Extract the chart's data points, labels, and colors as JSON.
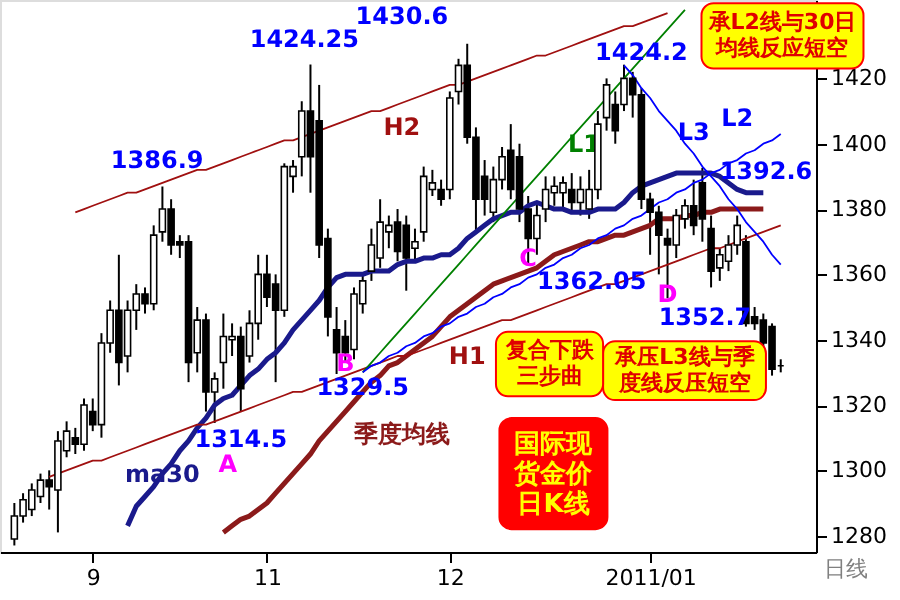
{
  "chart_data": {
    "type": "candlestick",
    "xlabel": "日线",
    "categories": [
      null,
      null,
      null,
      null,
      null,
      null,
      null,
      null,
      null,
      "9",
      null,
      null,
      null,
      null,
      null,
      null,
      null,
      null,
      null,
      null,
      null,
      null,
      null,
      null,
      null,
      null,
      null,
      null,
      null,
      "11",
      null,
      null,
      null,
      null,
      null,
      null,
      null,
      null,
      null,
      null,
      null,
      null,
      null,
      null,
      null,
      null,
      null,
      null,
      null,
      null,
      "12",
      null,
      null,
      null,
      null,
      null,
      null,
      null,
      null,
      null,
      null,
      null,
      null,
      null,
      null,
      null,
      null,
      null,
      null,
      null,
      null,
      null,
      null,
      "2011/01",
      null,
      null,
      null,
      null,
      null,
      null,
      null,
      null,
      null,
      null,
      null,
      null,
      null,
      null,
      null
    ],
    "ohlc": [
      [
        1279,
        1290,
        1277,
        1286
      ],
      [
        1286,
        1293,
        1284,
        1291
      ],
      [
        1288,
        1296,
        1286,
        1294
      ],
      [
        1292,
        1299,
        1290,
        1297
      ],
      [
        1297,
        1300,
        1288,
        1295
      ],
      [
        1294,
        1312,
        1281,
        1309
      ],
      [
        1306,
        1315,
        1304,
        1312
      ],
      [
        1310,
        1313,
        1305,
        1308
      ],
      [
        1308,
        1322,
        1306,
        1320
      ],
      [
        1318,
        1322,
        1312,
        1314
      ],
      [
        1314,
        1342,
        1310,
        1339
      ],
      [
        1339,
        1352,
        1336,
        1349
      ],
      [
        1349,
        1366,
        1326,
        1333
      ],
      [
        1335,
        1352,
        1330,
        1349
      ],
      [
        1349,
        1357,
        1343,
        1354
      ],
      [
        1354,
        1356,
        1348,
        1351
      ],
      [
        1351,
        1375,
        1349,
        1372
      ],
      [
        1373,
        1386.9,
        1370,
        1380
      ],
      [
        1380,
        1383,
        1366,
        1369
      ],
      [
        1370,
        1372,
        1365,
        1369
      ],
      [
        1370,
        1372,
        1327,
        1333
      ],
      [
        1336,
        1350,
        1330,
        1346
      ],
      [
        1346,
        1348,
        1318,
        1324
      ],
      [
        1324,
        1330,
        1314.5,
        1328
      ],
      [
        1333,
        1348,
        1325,
        1341
      ],
      [
        1340,
        1345,
        1335,
        1341
      ],
      [
        1341,
        1344,
        1318,
        1325
      ],
      [
        1335,
        1349,
        1333,
        1345
      ],
      [
        1345,
        1366,
        1340,
        1360
      ],
      [
        1360,
        1366,
        1350,
        1353
      ],
      [
        1357,
        1360,
        1327,
        1349
      ],
      [
        1349,
        1394,
        1347,
        1393
      ],
      [
        1390,
        1395,
        1385,
        1393
      ],
      [
        1396,
        1413,
        1390,
        1410
      ],
      [
        1410,
        1424.25,
        1385,
        1396
      ],
      [
        1407,
        1418,
        1365,
        1369
      ],
      [
        1371,
        1374,
        1341,
        1347
      ],
      [
        1343,
        1350,
        1329.5,
        1336
      ],
      [
        1341,
        1346,
        1333,
        1336
      ],
      [
        1337,
        1356,
        1334,
        1354
      ],
      [
        1351,
        1360,
        1348,
        1358
      ],
      [
        1361,
        1374,
        1358,
        1369
      ],
      [
        1365,
        1383,
        1362,
        1376
      ],
      [
        1373,
        1378,
        1368,
        1375
      ],
      [
        1376,
        1380,
        1364,
        1367
      ],
      [
        1375,
        1378,
        1355,
        1365
      ],
      [
        1368,
        1374,
        1364,
        1370
      ],
      [
        1373,
        1393,
        1370,
        1390
      ],
      [
        1386,
        1392,
        1384,
        1388
      ],
      [
        1386,
        1389,
        1381,
        1383
      ],
      [
        1386,
        1416,
        1383,
        1414
      ],
      [
        1416,
        1426,
        1412,
        1424
      ],
      [
        1424,
        1430.6,
        1400,
        1402
      ],
      [
        1402,
        1405,
        1373,
        1383
      ],
      [
        1390,
        1395,
        1378,
        1383
      ],
      [
        1379,
        1393,
        1376,
        1389
      ],
      [
        1389,
        1399,
        1386,
        1396
      ],
      [
        1398,
        1406,
        1383,
        1386
      ],
      [
        1396,
        1400,
        1376,
        1380
      ],
      [
        1380,
        1384,
        1363,
        1371
      ],
      [
        1371,
        1382,
        1366,
        1378
      ],
      [
        1380,
        1390,
        1376,
        1386
      ],
      [
        1385,
        1390,
        1381,
        1387
      ],
      [
        1385,
        1390,
        1380,
        1388
      ],
      [
        1386,
        1391,
        1379,
        1382
      ],
      [
        1382,
        1390,
        1378,
        1386
      ],
      [
        1380,
        1392,
        1377,
        1386
      ],
      [
        1386,
        1410,
        1383,
        1406
      ],
      [
        1408,
        1420,
        1404,
        1418
      ],
      [
        1412,
        1416,
        1400,
        1404
      ],
      [
        1412,
        1424.2,
        1410,
        1420
      ],
      [
        1420,
        1422,
        1408,
        1415
      ],
      [
        1415,
        1417,
        1380,
        1383
      ],
      [
        1383,
        1385,
        1366,
        1379
      ],
      [
        1379,
        1381,
        1360,
        1372
      ],
      [
        1371,
        1374,
        1352.7,
        1369
      ],
      [
        1369,
        1380,
        1365,
        1378
      ],
      [
        1377,
        1383,
        1374,
        1381
      ],
      [
        1381,
        1389,
        1372,
        1375
      ],
      [
        1388,
        1392.6,
        1370,
        1377
      ],
      [
        1374,
        1378,
        1356,
        1361
      ],
      [
        1362,
        1368,
        1358,
        1366
      ],
      [
        1364,
        1372,
        1361,
        1369
      ],
      [
        1369,
        1378,
        1366,
        1375
      ],
      [
        1370,
        1372,
        1344,
        1345
      ],
      [
        1347,
        1350,
        1343,
        1345
      ],
      [
        1346,
        1348,
        1337,
        1339
      ],
      [
        1344,
        1345,
        1329,
        1331
      ],
      [
        1332,
        1334,
        1330,
        1332
      ]
    ],
    "ylim": [
      1275,
      1444
    ],
    "yticks": [
      1280,
      1300,
      1320,
      1340,
      1360,
      1380,
      1400,
      1420
    ],
    "series": [
      {
        "name": "ma30",
        "type": "line",
        "color": "#1a1a8c",
        "values": [
          null,
          null,
          null,
          null,
          null,
          null,
          null,
          null,
          null,
          null,
          null,
          null,
          null,
          1283,
          1289,
          1292,
          1295,
          1299,
          1302,
          1306,
          1309,
          1313,
          1316,
          1320,
          1322,
          1323,
          1326,
          1329,
          1331,
          1334,
          1336,
          1339,
          1343,
          1346,
          1349,
          1352,
          1356,
          1359,
          1360,
          1360,
          1360,
          1361,
          1361,
          1361,
          1363,
          1364,
          1364,
          1365,
          1365,
          1366,
          1366,
          1368,
          1371,
          1373,
          1375,
          1377,
          1378,
          1379,
          1379,
          1381,
          1382,
          1381,
          1380,
          1380,
          1379,
          1379,
          1379,
          1380,
          1380,
          1380,
          1382,
          1385,
          1387,
          1388,
          1389,
          1390,
          1391,
          1391,
          1391,
          1391,
          1391,
          1390,
          1388,
          1386,
          1385,
          1385,
          1385,
          null,
          null
        ]
      },
      {
        "name": "季度均线",
        "type": "line",
        "color": "#8b1a1a",
        "values": [
          null,
          null,
          null,
          null,
          null,
          null,
          null,
          null,
          null,
          null,
          null,
          null,
          null,
          null,
          null,
          null,
          null,
          null,
          null,
          null,
          null,
          null,
          null,
          null,
          1281,
          1283,
          1285,
          1286,
          1288,
          1290,
          1293,
          1296,
          1299,
          1302,
          1305,
          1309,
          1312,
          1315,
          1318,
          1321,
          1324,
          1327,
          1329,
          1332,
          1333,
          1335,
          1337,
          1339,
          1341,
          1344,
          1347,
          1349,
          1351,
          1353,
          1355,
          1357,
          1358,
          1359,
          1360,
          1361,
          1362,
          1364,
          1366,
          1367,
          1368,
          1369,
          1370,
          1370,
          1371,
          1372,
          1372,
          1373,
          1374,
          1375,
          1377,
          1377,
          1377,
          1378,
          1378,
          1379,
          1379,
          1380,
          1380,
          1380,
          1380,
          1380,
          1380,
          null,
          null
        ]
      },
      {
        "name": "H2",
        "type": "line",
        "color": "#a01010",
        "values": [
          null,
          null,
          null,
          null,
          null,
          null,
          null,
          1379,
          1380,
          1381,
          1382,
          1383,
          1384,
          1385,
          1385,
          1386,
          1387,
          1388,
          1389,
          1390,
          1391,
          1392,
          1392,
          1393,
          1394,
          1395,
          1396,
          1397,
          1398,
          1399,
          1400,
          1401,
          1401,
          1402,
          1403,
          1404,
          1405,
          1406,
          1407,
          1408,
          1409,
          1410,
          1410,
          1411,
          1412,
          1413,
          1414,
          1415,
          1416,
          1417,
          1418,
          1418,
          1419,
          1420,
          1421,
          1422,
          1423,
          1424,
          1425,
          1426,
          1427,
          1427,
          1428,
          1429,
          1430,
          1431,
          1432,
          1433,
          1434,
          1435,
          1436,
          1436,
          1437,
          1438,
          1439,
          1440,
          null,
          null,
          null,
          null,
          null,
          null,
          null,
          null,
          null,
          null,
          null,
          null,
          null
        ]
      },
      {
        "name": "H1",
        "type": "line",
        "color": "#a01010",
        "values": [
          null,
          null,
          null,
          null,
          1298,
          1299,
          1300,
          1301,
          1302,
          1303,
          1303,
          1304,
          1305,
          1306,
          1307,
          1308,
          1309,
          1310,
          1311,
          1312,
          1313,
          1314,
          1314,
          1315,
          1316,
          1317,
          1318,
          1319,
          1320,
          1321,
          1322,
          1323,
          1324,
          1324,
          1325,
          1326,
          1327,
          1328,
          1329,
          1330,
          1331,
          1332,
          1333,
          1334,
          1335,
          1335,
          1336,
          1337,
          1338,
          1339,
          1340,
          1341,
          1342,
          1343,
          1344,
          1345,
          1346,
          1346,
          1347,
          1348,
          1349,
          1350,
          1351,
          1352,
          1353,
          1354,
          1355,
          1356,
          1357,
          1357,
          1358,
          1359,
          1360,
          1361,
          1362,
          1363,
          1364,
          1365,
          1366,
          1367,
          1368,
          1368,
          1369,
          1370,
          1371,
          1372,
          1373,
          1374,
          1375
        ]
      },
      {
        "name": "L1",
        "type": "line",
        "color": "#008000",
        "values": [
          null,
          null,
          null,
          null,
          null,
          null,
          null,
          null,
          null,
          null,
          null,
          null,
          null,
          null,
          null,
          null,
          null,
          null,
          null,
          null,
          null,
          null,
          null,
          null,
          null,
          null,
          null,
          null,
          null,
          null,
          null,
          null,
          null,
          null,
          null,
          null,
          null,
          null,
          null,
          null,
          1330,
          1333,
          1336,
          1339,
          1342,
          1345,
          1348,
          1351,
          1354,
          1357,
          1360,
          1363,
          1366,
          1369,
          1372,
          1375,
          1378,
          1381,
          1384,
          1387,
          1390,
          1393,
          1396,
          1399,
          1402,
          1405,
          1408,
          1411,
          1414,
          1417,
          1420,
          1423,
          1426,
          1429,
          1432,
          1435,
          1438,
          1441,
          null,
          null,
          null,
          null,
          null,
          null,
          null,
          null,
          null,
          null,
          null
        ]
      },
      {
        "name": "L2",
        "type": "line",
        "color": "#0000ff",
        "values": [
          null,
          null,
          null,
          null,
          null,
          null,
          null,
          null,
          null,
          null,
          null,
          null,
          null,
          null,
          null,
          null,
          null,
          null,
          null,
          null,
          null,
          null,
          null,
          null,
          null,
          null,
          null,
          null,
          null,
          null,
          null,
          null,
          null,
          null,
          null,
          null,
          null,
          null,
          null,
          null,
          1330,
          1332,
          1333,
          1335,
          1336,
          1338,
          1339,
          1341,
          1342,
          1344,
          1345,
          1347,
          1348,
          1350,
          1351,
          1353,
          1354,
          1356,
          1357,
          1359,
          1360,
          1362,
          1363,
          1365,
          1366,
          1368,
          1369,
          1371,
          1372,
          1374,
          1375,
          1377,
          1378,
          1380,
          1382,
          1383,
          1385,
          1386,
          1388,
          1389,
          1391,
          1392,
          1394,
          1395,
          1397,
          1398,
          1400,
          1401,
          1403
        ]
      },
      {
        "name": "L3",
        "type": "line",
        "color": "#0000ff",
        "values": [
          null,
          null,
          null,
          null,
          null,
          null,
          null,
          null,
          null,
          null,
          null,
          null,
          null,
          null,
          null,
          null,
          null,
          null,
          null,
          null,
          null,
          null,
          null,
          null,
          null,
          null,
          null,
          null,
          null,
          null,
          null,
          null,
          null,
          null,
          null,
          null,
          null,
          null,
          null,
          null,
          null,
          null,
          null,
          null,
          null,
          null,
          null,
          null,
          null,
          null,
          null,
          null,
          null,
          null,
          null,
          null,
          null,
          null,
          null,
          null,
          null,
          null,
          null,
          null,
          null,
          null,
          null,
          null,
          null,
          null,
          1424,
          1421,
          1417,
          1414,
          1410,
          1407,
          1404,
          1400,
          1397,
          1393,
          1390,
          1387,
          1383,
          1380,
          1376,
          1373,
          1370,
          1366,
          1363
        ]
      }
    ],
    "annotations": [
      "1424.25",
      "1430.6",
      "1386.9",
      "1424.2",
      "1392.6",
      "1362.05",
      "1352.7",
      "1329.5",
      "1314.5",
      "A",
      "B",
      "C",
      "D",
      "承L2线与30日均线反应短空",
      "承压L3线与季度线反压短空",
      "复合下跌三步曲",
      "国际现货金价日K线"
    ]
  }
}
